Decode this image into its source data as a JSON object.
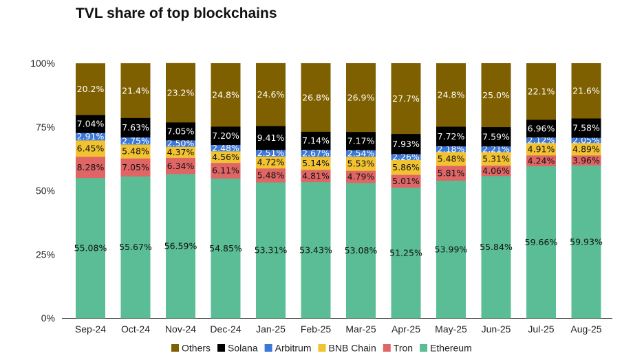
{
  "chart_data": {
    "type": "bar",
    "stacked": true,
    "title": "TVL share of top blockchains",
    "xlabel": "",
    "ylabel": "",
    "ylim": [
      0,
      100
    ],
    "yticks": [
      "0%",
      "25%",
      "50%",
      "75%",
      "100%"
    ],
    "grid": false,
    "legend_position": "bottom",
    "categories": [
      "Sep-24",
      "Oct-24",
      "Nov-24",
      "Dec-24",
      "Jan-25",
      "Feb-25",
      "Mar-25",
      "Apr-25",
      "May-25",
      "Jun-25",
      "Jul-25",
      "Aug-25"
    ],
    "series": [
      {
        "name": "Ethereum",
        "color": "#5bbd95",
        "label_color": "#111111",
        "values": [
          55.08,
          55.67,
          56.59,
          54.85,
          53.31,
          53.43,
          53.08,
          51.25,
          53.99,
          55.84,
          59.66,
          59.93
        ],
        "labels": [
          "55.08%",
          "55.67%",
          "56.59%",
          "54.85%",
          "53.31%",
          "53.43%",
          "53.08%",
          "51.25%",
          "53.99%",
          "55.84%",
          "59.66%",
          "59.93%"
        ]
      },
      {
        "name": "Tron",
        "color": "#e06666",
        "label_color": "#111111",
        "values": [
          8.28,
          7.05,
          6.34,
          6.11,
          5.48,
          4.81,
          4.79,
          5.01,
          5.81,
          4.06,
          4.24,
          3.96
        ],
        "labels": [
          "8.28%",
          "7.05%",
          "6.34%",
          "6.11%",
          "5.48%",
          "4.81%",
          "4.79%",
          "5.01%",
          "5.81%",
          "4.06%",
          "4.24%",
          "3.96%"
        ]
      },
      {
        "name": "BNB Chain",
        "color": "#f1c232",
        "label_color": "#111111",
        "values": [
          6.45,
          5.48,
          4.37,
          4.56,
          4.72,
          5.14,
          5.53,
          5.86,
          5.48,
          5.31,
          4.91,
          4.89
        ],
        "labels": [
          "6.45%",
          "5.48%",
          "4.37%",
          "4.56%",
          "4.72%",
          "5.14%",
          "5.53%",
          "5.86%",
          "5.48%",
          "5.31%",
          "4.91%",
          "4.89%"
        ]
      },
      {
        "name": "Arbitrum",
        "color": "#3c78d8",
        "label_color": "#ffffff",
        "values": [
          2.91,
          2.75,
          2.5,
          2.48,
          2.51,
          2.67,
          2.54,
          2.26,
          2.18,
          2.21,
          2.12,
          2.05
        ],
        "labels": [
          "2.91%",
          "2.75%",
          "2.50%",
          "2.48%",
          "2.51%",
          "2.67%",
          "2.54%",
          "2.26%",
          "2.18%",
          "2.21%",
          "2.12%",
          "2.05%"
        ]
      },
      {
        "name": "Solana",
        "color": "#000000",
        "label_color": "#ffffff",
        "values": [
          7.04,
          7.63,
          7.05,
          7.2,
          9.41,
          7.14,
          7.17,
          7.93,
          7.72,
          7.59,
          6.96,
          7.58
        ],
        "labels": [
          "7.04%",
          "7.63%",
          "7.05%",
          "7.20%",
          "9.41%",
          "7.14%",
          "7.17%",
          "7.93%",
          "7.72%",
          "7.59%",
          "6.96%",
          "7.58%"
        ]
      },
      {
        "name": "Others",
        "color": "#7f6000",
        "label_color": "#ffffff",
        "values": [
          20.2,
          21.4,
          23.2,
          24.8,
          24.6,
          26.8,
          26.9,
          27.7,
          24.8,
          25.0,
          22.1,
          21.6
        ],
        "labels": [
          "20.2%",
          "21.4%",
          "23.2%",
          "24.8%",
          "24.6%",
          "26.8%",
          "26.9%",
          "27.7%",
          "24.8%",
          "25.0%",
          "22.1%",
          "21.6%"
        ]
      }
    ],
    "legend_order": [
      "Others",
      "Solana",
      "Arbitrum",
      "BNB Chain",
      "Tron",
      "Ethereum"
    ]
  }
}
